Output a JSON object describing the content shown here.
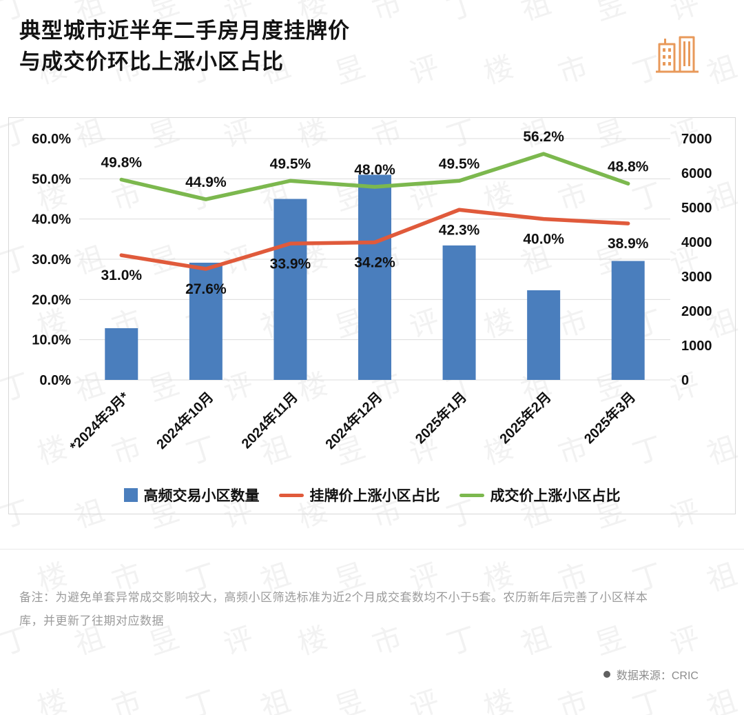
{
  "header": {
    "title_line1": "典型城市近半年二手房月度挂牌价",
    "title_line2": "与成交价环比上涨小区占比",
    "logo_color": "#e8995a"
  },
  "chart_data": {
    "type": "bar",
    "subtype": "bar+line combo, dual axis",
    "categories": [
      "*2024年3月*",
      "2024年10月",
      "2024年11月",
      "2024年12月",
      "2025年1月",
      "2025年2月",
      "2025年3月"
    ],
    "bar_series": {
      "name": "高频交易小区数量",
      "axis": "right",
      "color": "#4a7ebd",
      "values": [
        1500,
        3400,
        5250,
        5950,
        3900,
        2600,
        3450
      ]
    },
    "line_series": [
      {
        "name": "挂牌价上涨小区占比",
        "axis": "left",
        "color": "#e05a3b",
        "label_position": "below",
        "values": [
          31.0,
          27.6,
          33.9,
          34.2,
          42.3,
          40.0,
          38.9
        ],
        "labels": [
          "31.0%",
          "27.6%",
          "33.9%",
          "34.2%",
          "42.3%",
          "40.0%",
          "38.9%"
        ]
      },
      {
        "name": "成交价上涨小区占比",
        "axis": "left",
        "color": "#7cb84e",
        "label_position": "above",
        "values": [
          49.8,
          44.9,
          49.5,
          48.0,
          49.5,
          56.2,
          48.8
        ],
        "labels": [
          "49.8%",
          "44.9%",
          "49.5%",
          "48.0%",
          "49.5%",
          "56.2%",
          "48.8%"
        ]
      }
    ],
    "left_axis": {
      "min": 0,
      "max": 60,
      "step": 10,
      "ticks": [
        "0.0%",
        "10.0%",
        "20.0%",
        "30.0%",
        "40.0%",
        "50.0%",
        "60.0%"
      ]
    },
    "right_axis": {
      "min": 0,
      "max": 7000,
      "step": 1000,
      "ticks": [
        "0",
        "1000",
        "2000",
        "3000",
        "4000",
        "5000",
        "6000",
        "7000"
      ]
    },
    "grid": true,
    "legend_position": "bottom"
  },
  "legend": {
    "items": [
      {
        "label": "高频交易小区数量",
        "type": "square",
        "color": "#4a7ebd"
      },
      {
        "label": "挂牌价上涨小区占比",
        "type": "line",
        "color": "#e05a3b"
      },
      {
        "label": "成交价上涨小区占比",
        "type": "line",
        "color": "#7cb84e"
      }
    ]
  },
  "note": "备注：为避免单套异常成交影响较大，高频小区筛选标准为近2个月成交套数均不小于5套。农历新年后完善了小区样本库，并更新了往期对应数据",
  "source": {
    "text": "数据来源：CRIC"
  },
  "watermark": {
    "text": "丁祖昱评楼市"
  }
}
